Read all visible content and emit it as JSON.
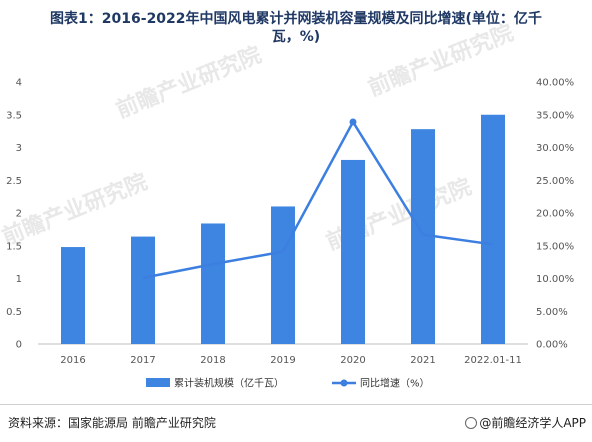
{
  "title": {
    "line1": "图表1：2016-2022年中国风电累计并网装机容量规模及同比增速(单位：亿千",
    "line2": "瓦，%)"
  },
  "chart_data": {
    "type": "bar",
    "categories": [
      "2016",
      "2017",
      "2018",
      "2019",
      "2020",
      "2021",
      "2022.01-11"
    ],
    "series": [
      {
        "name": "累计装机规模（亿千瓦）",
        "chart": "bar",
        "axis": "left",
        "color": "#3d85e0",
        "values": [
          1.48,
          1.64,
          1.84,
          2.1,
          2.81,
          3.28,
          3.5
        ]
      },
      {
        "name": "同比增速（%）",
        "chart": "line",
        "axis": "right",
        "color": "#3d7fe0",
        "values": [
          null,
          10.1,
          12.2,
          14.1,
          33.9,
          16.7,
          15.2
        ]
      }
    ],
    "y_left": {
      "ylim": [
        0,
        4
      ],
      "ticks": [
        "0",
        "0.5",
        "1",
        "1.5",
        "2",
        "2.5",
        "3",
        "3.5",
        "4"
      ]
    },
    "y_right": {
      "ylim": [
        0,
        40
      ],
      "ticks": [
        "0.00%",
        "5.00%",
        "10.00%",
        "15.00%",
        "20.00%",
        "25.00%",
        "30.00%",
        "35.00%",
        "40.00%"
      ]
    },
    "grid": false,
    "legend_position": "bottom"
  },
  "footer": {
    "source": "资料来源：国家能源局 前瞻产业研究院",
    "brand": "@前瞻经济学人APP"
  },
  "watermark": {
    "text": "前瞻产业研究院"
  }
}
